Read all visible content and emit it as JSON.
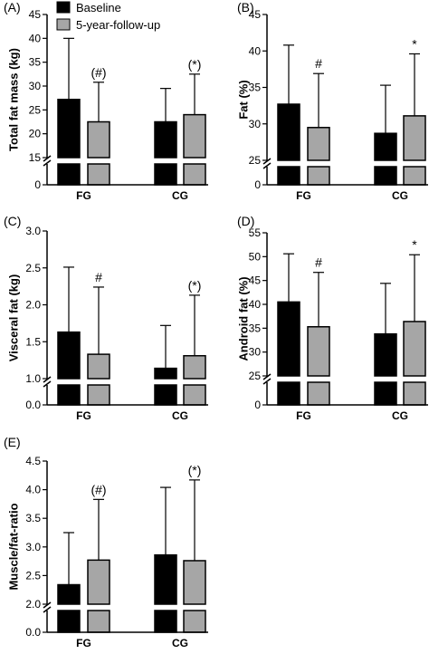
{
  "legend": {
    "items": [
      {
        "label": "Baseline",
        "color": "#000000"
      },
      {
        "label": "5-year-follow-up",
        "color": "#a6a6a6"
      }
    ],
    "placement": "top"
  },
  "chart_data": [
    {
      "panel": "(A)",
      "type": "bar",
      "ylabel": "Total fat mass (kg)",
      "categories": [
        "FG",
        "CG"
      ],
      "broken_axis": true,
      "ylim": [
        15,
        45
      ],
      "yticks": [
        "45",
        "40",
        "35",
        "30",
        "25",
        "20",
        "15"
      ],
      "yticks_below_break": [
        "0"
      ],
      "series": [
        {
          "name": "Baseline",
          "values": [
            27.2,
            22.5
          ],
          "error": [
            12.8,
            7.0
          ]
        },
        {
          "name": "5-year-follow-up",
          "values": [
            22.5,
            24.0
          ],
          "error": [
            8.3,
            8.5
          ]
        }
      ],
      "annotations": [
        {
          "category": "FG",
          "text": "(#)"
        },
        {
          "category": "CG",
          "text": "(*)"
        }
      ]
    },
    {
      "panel": "(B)",
      "type": "bar",
      "ylabel": "Fat (%)",
      "categories": [
        "FG",
        "CG"
      ],
      "broken_axis": true,
      "ylim": [
        25,
        45
      ],
      "yticks": [
        "45",
        "40",
        "35",
        "30",
        "25"
      ],
      "yticks_below_break": [
        "0"
      ],
      "series": [
        {
          "name": "Baseline",
          "values": [
            32.7,
            28.7
          ],
          "error": [
            8.1,
            6.6
          ]
        },
        {
          "name": "5-year-follow-up",
          "values": [
            29.5,
            31.1
          ],
          "error": [
            7.4,
            8.5
          ]
        }
      ],
      "annotations": [
        {
          "category": "FG",
          "text": "#"
        },
        {
          "category": "CG",
          "text": "*"
        }
      ]
    },
    {
      "panel": "(C)",
      "type": "bar",
      "ylabel": "Visceral fat (kg)",
      "categories": [
        "FG",
        "CG"
      ],
      "broken_axis": true,
      "ylim": [
        1.0,
        3.0
      ],
      "yticks": [
        "3.0",
        "2.5",
        "2.0",
        "1.5",
        "1.0"
      ],
      "yticks_below_break": [
        "0.0"
      ],
      "series": [
        {
          "name": "Baseline",
          "values": [
            1.63,
            1.14
          ],
          "error": [
            0.88,
            0.58
          ]
        },
        {
          "name": "5-year-follow-up",
          "values": [
            1.33,
            1.31
          ],
          "error": [
            0.91,
            0.82
          ]
        }
      ],
      "annotations": [
        {
          "category": "FG",
          "text": "#"
        },
        {
          "category": "CG",
          "text": "(*)"
        }
      ]
    },
    {
      "panel": "(D)",
      "type": "bar",
      "ylabel": "Android fat (%)",
      "categories": [
        "FG",
        "CG"
      ],
      "broken_axis": true,
      "ylim": [
        25,
        55
      ],
      "yticks": [
        "55",
        "50",
        "45",
        "40",
        "35",
        "30",
        "25"
      ],
      "yticks_below_break": [
        "0"
      ],
      "series": [
        {
          "name": "Baseline",
          "values": [
            40.5,
            33.8
          ],
          "error": [
            10.1,
            10.6
          ]
        },
        {
          "name": "5-year-follow-up",
          "values": [
            35.3,
            36.4
          ],
          "error": [
            11.4,
            14.0
          ]
        }
      ],
      "annotations": [
        {
          "category": "FG",
          "text": "#"
        },
        {
          "category": "CG",
          "text": "*"
        }
      ]
    },
    {
      "panel": "(E)",
      "type": "bar",
      "ylabel": "Muscle/fat-ratio",
      "categories": [
        "FG",
        "CG"
      ],
      "broken_axis": true,
      "ylim": [
        2.0,
        4.5
      ],
      "yticks": [
        "4.5",
        "4.0",
        "3.5",
        "3.0",
        "2.5",
        "2.0"
      ],
      "yticks_below_break": [
        "0.0"
      ],
      "series": [
        {
          "name": "Baseline",
          "values": [
            2.34,
            2.86
          ],
          "error": [
            0.91,
            1.18
          ]
        },
        {
          "name": "5-year-follow-up",
          "values": [
            2.77,
            2.76
          ],
          "error": [
            1.06,
            1.41
          ]
        }
      ],
      "annotations": [
        {
          "category": "FG",
          "text": "(#)"
        },
        {
          "category": "CG",
          "text": "(*)"
        }
      ]
    }
  ]
}
